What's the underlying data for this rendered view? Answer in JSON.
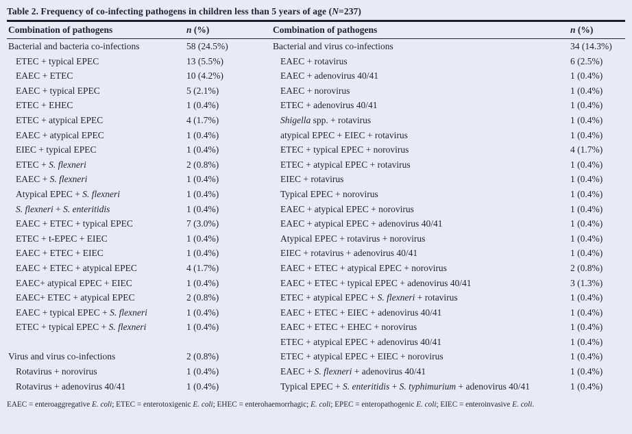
{
  "title": {
    "part1": "Table 2. Frequency of co-infecting pathogens in children less than 5 years of age (",
    "n_italic": "N",
    "part2": "=237)"
  },
  "header": {
    "pathogens_left": "Combination of pathogens",
    "n_italic_left": "n",
    "n_rest_left": " (%)",
    "pathogens_right": "Combination of pathogens",
    "n_italic_right": "n",
    "n_rest_right": " (%)"
  },
  "rows": [
    {
      "left": {
        "segments": [
          {
            "t": "Bacterial and bacteria co-infections"
          }
        ],
        "value": "58 (24.5%)",
        "indent": false
      },
      "right": {
        "segments": [
          {
            "t": "Bacterial and virus co-infections"
          }
        ],
        "value": "34 (14.3%)",
        "indent": false
      }
    },
    {
      "left": {
        "segments": [
          {
            "t": "ETEC + typical EPEC"
          }
        ],
        "value": "13 (5.5%)",
        "indent": true
      },
      "right": {
        "segments": [
          {
            "t": "EAEC + rotavirus"
          }
        ],
        "value": "6 (2.5%)",
        "indent": true
      }
    },
    {
      "left": {
        "segments": [
          {
            "t": "EAEC + ETEC"
          }
        ],
        "value": "10 (4.2%)",
        "indent": true
      },
      "right": {
        "segments": [
          {
            "t": "EAEC + adenovirus 40/41"
          }
        ],
        "value": "1 (0.4%)",
        "indent": true
      }
    },
    {
      "left": {
        "segments": [
          {
            "t": "EAEC + typical EPEC"
          }
        ],
        "value": "5 (2.1%)",
        "indent": true
      },
      "right": {
        "segments": [
          {
            "t": "EAEC + norovirus"
          }
        ],
        "value": "1 (0.4%)",
        "indent": true
      }
    },
    {
      "left": {
        "segments": [
          {
            "t": "ETEC + EHEC"
          }
        ],
        "value": "1 (0.4%)",
        "indent": true
      },
      "right": {
        "segments": [
          {
            "t": "ETEC + adenovirus 40/41"
          }
        ],
        "value": "1 (0.4%)",
        "indent": true
      }
    },
    {
      "left": {
        "segments": [
          {
            "t": "ETEC + atypical EPEC"
          }
        ],
        "value": "4 (1.7%)",
        "indent": true
      },
      "right": {
        "segments": [
          {
            "t": "Shigella",
            "i": true
          },
          {
            "t": " spp. + rotavirus"
          }
        ],
        "value": "1 (0.4%)",
        "indent": true
      }
    },
    {
      "left": {
        "segments": [
          {
            "t": "EAEC + atypical EPEC"
          }
        ],
        "value": "1 (0.4%)",
        "indent": true
      },
      "right": {
        "segments": [
          {
            "t": "atypical EPEC + EIEC + rotavirus"
          }
        ],
        "value": "1 (0.4%)",
        "indent": true
      }
    },
    {
      "left": {
        "segments": [
          {
            "t": "EIEC + typical EPEC"
          }
        ],
        "value": "1 (0.4%)",
        "indent": true
      },
      "right": {
        "segments": [
          {
            "t": "ETEC + typical EPEC + norovirus"
          }
        ],
        "value": "4 (1.7%)",
        "indent": true
      }
    },
    {
      "left": {
        "segments": [
          {
            "t": "ETEC + "
          },
          {
            "t": "S. flexneri",
            "i": true
          }
        ],
        "value": "2 (0.8%)",
        "indent": true
      },
      "right": {
        "segments": [
          {
            "t": "ETEC + atypical EPEC + rotavirus"
          }
        ],
        "value": "1 (0.4%)",
        "indent": true
      }
    },
    {
      "left": {
        "segments": [
          {
            "t": "EAEC + "
          },
          {
            "t": "S. flexneri",
            "i": true
          }
        ],
        "value": "1 (0.4%)",
        "indent": true
      },
      "right": {
        "segments": [
          {
            "t": "EIEC + rotavirus"
          }
        ],
        "value": "1 (0.4%)",
        "indent": true
      }
    },
    {
      "left": {
        "segments": [
          {
            "t": "Atypical EPEC + "
          },
          {
            "t": "S. flexneri",
            "i": true
          }
        ],
        "value": "1 (0.4%)",
        "indent": true
      },
      "right": {
        "segments": [
          {
            "t": "Typical EPEC + norovirus"
          }
        ],
        "value": "1 (0.4%)",
        "indent": true
      }
    },
    {
      "left": {
        "segments": [
          {
            "t": "S. flexneri",
            "i": true
          },
          {
            "t": " + "
          },
          {
            "t": "S. enteritidis",
            "i": true
          }
        ],
        "value": "1 (0.4%)",
        "indent": true
      },
      "right": {
        "segments": [
          {
            "t": "EAEC + atypical EPEC + norovirus"
          }
        ],
        "value": "1 (0.4%)",
        "indent": true
      }
    },
    {
      "left": {
        "segments": [
          {
            "t": "EAEC + ETEC + typical EPEC"
          }
        ],
        "value": "7 (3.0%)",
        "indent": true
      },
      "right": {
        "segments": [
          {
            "t": "EAEC + atypical EPEC + adenovirus 40/41"
          }
        ],
        "value": "1 (0.4%)",
        "indent": true
      }
    },
    {
      "left": {
        "segments": [
          {
            "t": "ETEC + t-EPEC + EIEC"
          }
        ],
        "value": "1 (0.4%)",
        "indent": true
      },
      "right": {
        "segments": [
          {
            "t": "Atypical EPEC + rotavirus + norovirus"
          }
        ],
        "value": "1 (0.4%)",
        "indent": true
      }
    },
    {
      "left": {
        "segments": [
          {
            "t": "EAEC + ETEC + EIEC"
          }
        ],
        "value": "1 (0.4%)",
        "indent": true
      },
      "right": {
        "segments": [
          {
            "t": "EIEC + rotavirus + adenovirus 40/41"
          }
        ],
        "value": "1 (0.4%)",
        "indent": true
      }
    },
    {
      "left": {
        "segments": [
          {
            "t": "EAEC + ETEC + atypical EPEC"
          }
        ],
        "value": "4 (1.7%)",
        "indent": true
      },
      "right": {
        "segments": [
          {
            "t": "EAEC + ETEC + atypical EPEC + norovirus"
          }
        ],
        "value": "2 (0.8%)",
        "indent": true
      }
    },
    {
      "left": {
        "segments": [
          {
            "t": "EAEC+ atypical EPEC + EIEC"
          }
        ],
        "value": "1 (0.4%)",
        "indent": true
      },
      "right": {
        "segments": [
          {
            "t": "EAEC + ETEC + typical EPEC + adenovirus 40/41"
          }
        ],
        "value": "3 (1.3%)",
        "indent": true
      }
    },
    {
      "left": {
        "segments": [
          {
            "t": "EAEC+ ETEC + atypical EPEC"
          }
        ],
        "value": "2 (0.8%)",
        "indent": true
      },
      "right": {
        "segments": [
          {
            "t": "ETEC + atypical EPEC + "
          },
          {
            "t": "S. flexneri",
            "i": true
          },
          {
            "t": " + rotavirus"
          }
        ],
        "value": "1 (0.4%)",
        "indent": true
      }
    },
    {
      "left": {
        "segments": [
          {
            "t": "EAEC + typical EPEC + "
          },
          {
            "t": "S. flexneri",
            "i": true
          }
        ],
        "value": "1 (0.4%)",
        "indent": true
      },
      "right": {
        "segments": [
          {
            "t": "EAEC + ETEC + EIEC + adenovirus 40/41"
          }
        ],
        "value": "1 (0.4%)",
        "indent": true
      }
    },
    {
      "left": {
        "segments": [
          {
            "t": "ETEC + typical EPEC + "
          },
          {
            "t": "S. flexneri",
            "i": true
          }
        ],
        "value": "1 (0.4%)",
        "indent": true
      },
      "right": {
        "segments": [
          {
            "t": "EAEC + ETEC + EHEC + norovirus"
          }
        ],
        "value": "1 (0.4%)",
        "indent": true
      }
    },
    {
      "left": null,
      "right": {
        "segments": [
          {
            "t": "ETEC + atypical EPEC + adenovirus 40/41"
          }
        ],
        "value": "1 (0.4%)",
        "indent": true
      }
    },
    {
      "left": {
        "segments": [
          {
            "t": "Virus and virus co-infections"
          }
        ],
        "value": "2 (0.8%)",
        "indent": false
      },
      "right": {
        "segments": [
          {
            "t": "ETEC + atypical EPEC + EIEC + norovirus"
          }
        ],
        "value": "1 (0.4%)",
        "indent": true
      }
    },
    {
      "left": {
        "segments": [
          {
            "t": "Rotavirus + norovirus"
          }
        ],
        "value": "1 (0.4%)",
        "indent": true
      },
      "right": {
        "segments": [
          {
            "t": "EAEC + "
          },
          {
            "t": "S. flexneri",
            "i": true
          },
          {
            "t": " + adenovirus 40/41"
          }
        ],
        "value": "1 (0.4%)",
        "indent": true
      }
    },
    {
      "left": {
        "segments": [
          {
            "t": "Rotavirus + adenovirus 40/41"
          }
        ],
        "value": "1 (0.4%)",
        "indent": true
      },
      "right": {
        "segments": [
          {
            "t": "Typical EPEC + "
          },
          {
            "t": "S. enteritidis",
            "i": true
          },
          {
            "t": " + "
          },
          {
            "t": "S. typhimurium",
            "i": true
          },
          {
            "t": " + adenovirus 40/41"
          }
        ],
        "value": "1 (0.4%)",
        "indent": true
      }
    }
  ],
  "footnote": [
    {
      "t": "EAEC = enteroaggregative "
    },
    {
      "t": "E. coli",
      "i": true
    },
    {
      "t": "; ETEC = enterotoxigenic "
    },
    {
      "t": "E. coli",
      "i": true
    },
    {
      "t": "; EHEC = enterohaemorrhagic; "
    },
    {
      "t": "E. coli",
      "i": true
    },
    {
      "t": "; EPEC = enteropathogenic "
    },
    {
      "t": "E. coli",
      "i": true
    },
    {
      "t": "; EIEC = enteroinvasive "
    },
    {
      "t": "E. coli",
      "i": true
    },
    {
      "t": "."
    }
  ]
}
